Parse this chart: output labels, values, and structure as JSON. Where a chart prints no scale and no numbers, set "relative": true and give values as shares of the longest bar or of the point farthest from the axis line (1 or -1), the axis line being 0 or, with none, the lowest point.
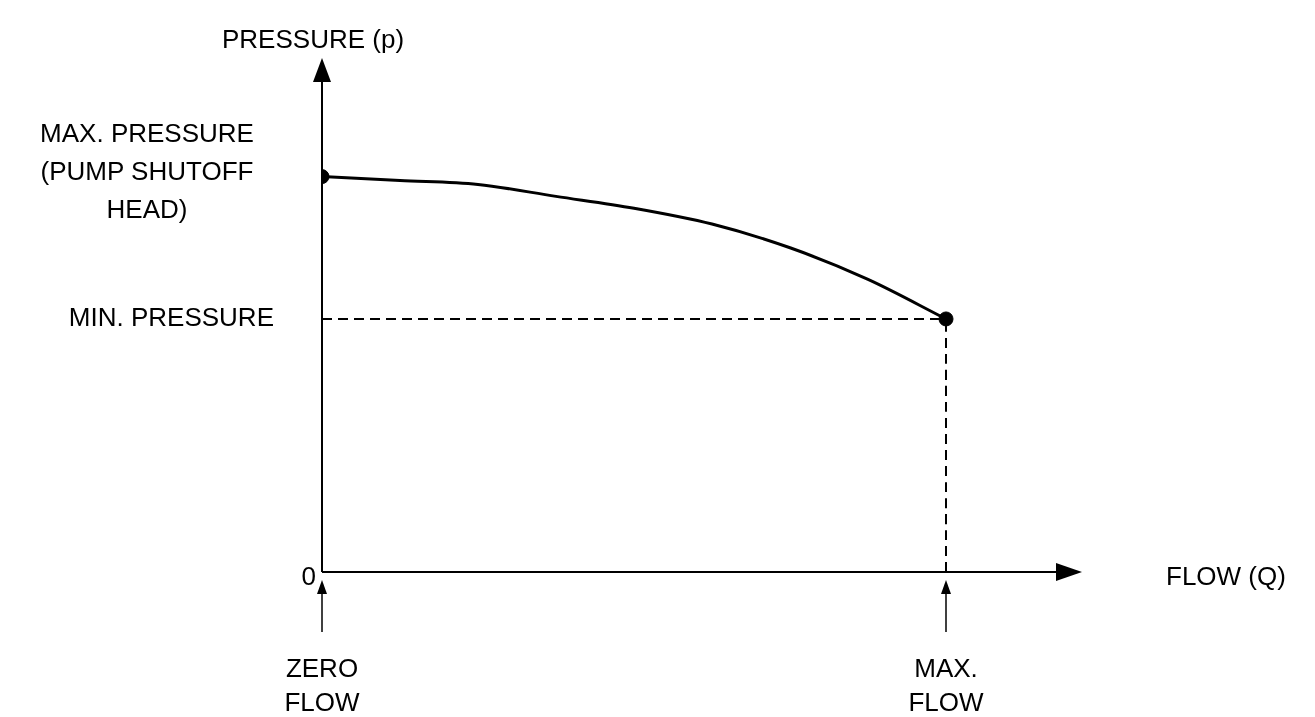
{
  "chart_data": {
    "type": "line",
    "relative": true,
    "ylabel": "PRESSURE (p)",
    "xlabel": "FLOW (Q)",
    "categories": [
      "ZERO FLOW",
      null,
      null,
      null,
      null,
      null,
      null,
      null,
      "MAX. FLOW",
      null,
      null
    ],
    "series": [
      {
        "type": "line",
        "color": "#000000",
        "marker": "none",
        "values": [
          1,
          0.99,
          0.98,
          0.95,
          0.92,
          0.88,
          0.82,
          0.74,
          0.64,
          null,
          null
        ]
      },
      {
        "type": "line",
        "color": "#000000",
        "marker": "none",
        "line_style": "dashed",
        "x": [
          "MAX. FLOW",
          "MAX. FLOW"
        ],
        "values": [
          0,
          0.64
        ]
      },
      {
        "type": "scatter",
        "color": "#000000",
        "marker": "circle",
        "x": [
          "ZERO FLOW",
          "MAX. FLOW"
        ],
        "values": [
          1,
          0.64
        ]
      }
    ],
    "ref_lines": [
      {
        "axis": "y",
        "value": 0.64,
        "label": "MIN. PRESSURE",
        "line_style": "dashed"
      }
    ],
    "annotations": [
      {
        "text": "MAX. PRESSURE (PUMP SHUTOFF HEAD)",
        "x": "ZERO FLOW",
        "y": 1
      },
      "0"
    ],
    "grid": false,
    "legend": false
  }
}
